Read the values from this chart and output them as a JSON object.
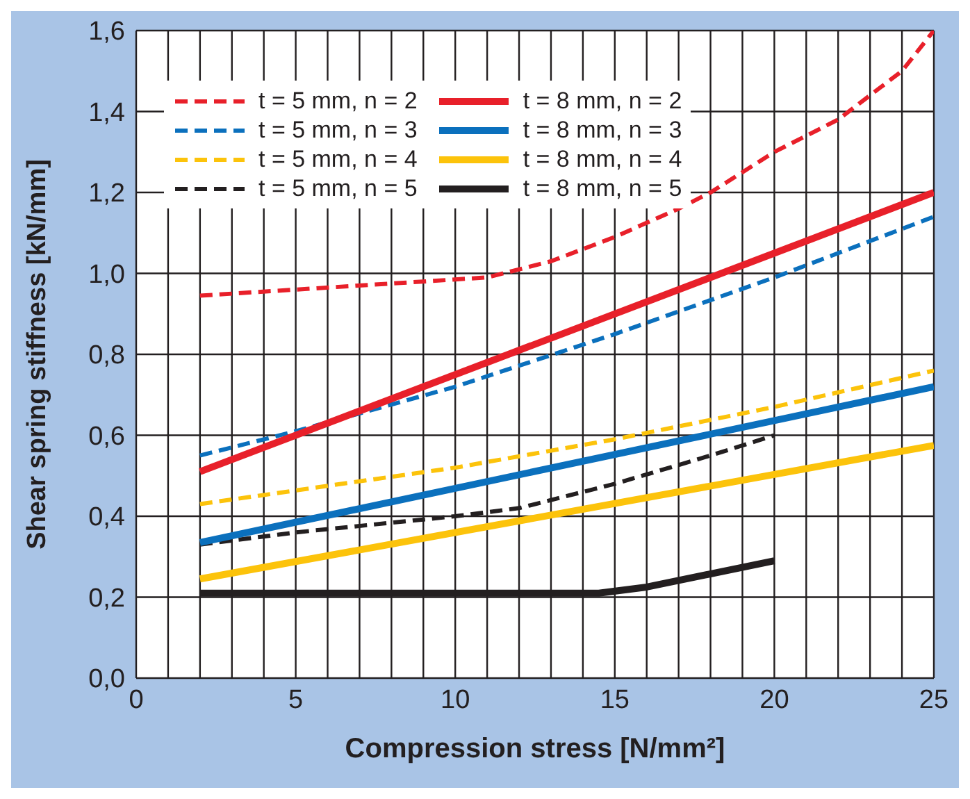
{
  "chart_data": {
    "type": "line",
    "xlabel": "Compression stress [N/mm²]",
    "ylabel": "Shear spring stiffness [kN/mm]",
    "xlim": [
      0,
      25
    ],
    "ylim": [
      0,
      1.6
    ],
    "xticks": [
      0,
      {
        "value": 1,
        "label": null
      },
      {
        "value": 2,
        "label": null
      },
      {
        "value": 3,
        "label": null
      },
      {
        "value": 4,
        "label": null
      },
      5,
      {
        "value": 6,
        "label": null
      },
      {
        "value": 7,
        "label": null
      },
      {
        "value": 8,
        "label": null
      },
      {
        "value": 9,
        "label": null
      },
      10,
      {
        "value": 11,
        "label": null
      },
      {
        "value": 12,
        "label": null
      },
      {
        "value": 13,
        "label": null
      },
      {
        "value": 14,
        "label": null
      },
      15,
      {
        "value": 16,
        "label": null
      },
      {
        "value": 17,
        "label": null
      },
      {
        "value": 18,
        "label": null
      },
      {
        "value": 19,
        "label": null
      },
      20,
      {
        "value": 21,
        "label": null
      },
      {
        "value": 22,
        "label": null
      },
      {
        "value": 23,
        "label": null
      },
      {
        "value": 24,
        "label": null
      },
      25
    ],
    "yticks": [
      {
        "value": 0,
        "label": "0,0"
      },
      {
        "value": 0.2,
        "label": "0,2"
      },
      {
        "value": 0.4,
        "label": "0,4"
      },
      {
        "value": 0.6,
        "label": "0,6"
      },
      {
        "value": 0.8,
        "label": "0,8"
      },
      {
        "value": 1,
        "label": "1,0"
      },
      {
        "value": 1.2,
        "label": "1,2"
      },
      {
        "value": 1.4,
        "label": "1,4"
      },
      {
        "value": 1.6,
        "label": "1,6"
      }
    ],
    "grid": true,
    "legend": "top left",
    "marker": "none",
    "series": [
      {
        "name": "t = 5 mm, n = 2",
        "color": "#e8202a",
        "line_style": "dashed",
        "x": [
          2,
          5,
          8,
          11,
          13,
          15,
          17,
          18,
          20,
          22,
          24,
          25
        ],
        "values": [
          0.945,
          0.96,
          0.975,
          0.99,
          1.03,
          1.09,
          1.16,
          1.2,
          1.3,
          1.38,
          1.5,
          1.6
        ]
      },
      {
        "name": "t = 5 mm, n = 3",
        "color": "#0b70bd",
        "line_style": "dashed",
        "x": [
          2,
          5,
          10,
          15,
          20,
          25
        ],
        "values": [
          0.55,
          0.61,
          0.72,
          0.85,
          0.99,
          1.14
        ]
      },
      {
        "name": "t = 5 mm, n = 4",
        "color": "#fcc30b",
        "line_style": "dashed",
        "x": [
          2,
          10,
          15,
          20,
          25
        ],
        "values": [
          0.43,
          0.52,
          0.59,
          0.67,
          0.76
        ]
      },
      {
        "name": "t = 5 mm, n = 5",
        "color": "#231f20",
        "line_style": "dashed",
        "x": [
          2,
          5,
          10,
          12,
          15,
          18,
          20
        ],
        "values": [
          0.33,
          0.36,
          0.4,
          0.42,
          0.48,
          0.55,
          0.6
        ]
      },
      {
        "name": "t = 8 mm, n = 2",
        "color": "#e8202a",
        "line_style": "solid",
        "x": [
          2,
          25
        ],
        "values": [
          0.51,
          1.2
        ]
      },
      {
        "name": "t = 8 mm, n = 3",
        "color": "#0b70bd",
        "line_style": "solid",
        "x": [
          2,
          25
        ],
        "values": [
          0.335,
          0.72
        ]
      },
      {
        "name": "t = 8 mm, n = 4",
        "color": "#fcc30b",
        "line_style": "solid",
        "x": [
          2,
          25
        ],
        "values": [
          0.245,
          0.575
        ]
      },
      {
        "name": "t = 8 mm, n = 5",
        "color": "#231f20",
        "line_style": "solid",
        "x": [
          2,
          14.5,
          16,
          20
        ],
        "values": [
          0.21,
          0.21,
          0.225,
          0.29
        ]
      }
    ]
  }
}
